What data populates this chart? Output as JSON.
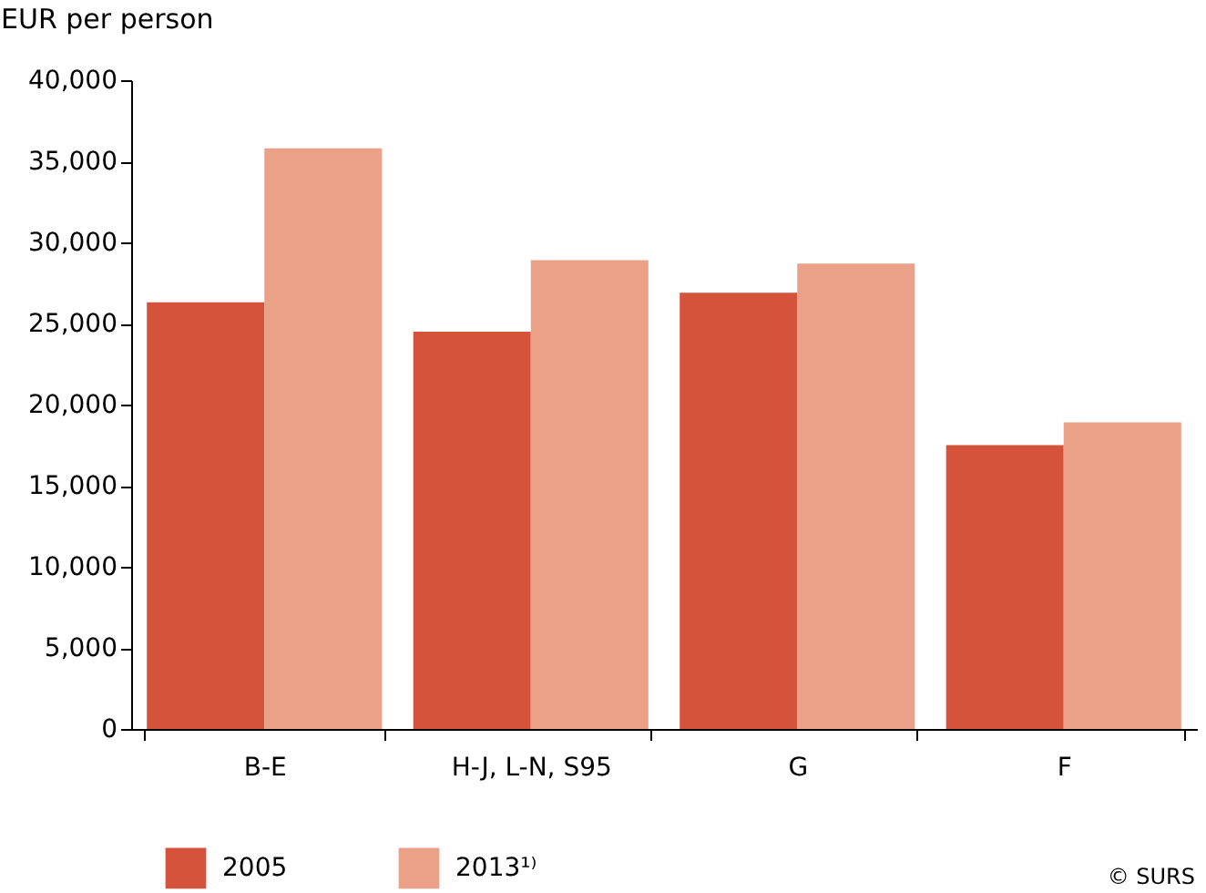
{
  "chart_data": {
    "type": "bar",
    "ylabel": "EUR per person",
    "categories": [
      "B-E",
      "H-J, L-N, S95",
      "G",
      "F"
    ],
    "series": [
      {
        "name": "2005",
        "color": "#d5533b",
        "values": [
          26300,
          24500,
          26900,
          17500
        ]
      },
      {
        "name": "2013¹⁾",
        "color": "#eba188",
        "values": [
          35800,
          28900,
          28700,
          18900
        ]
      }
    ],
    "ylim": [
      0,
      40000
    ],
    "yticks": [
      0,
      {
        "value": 5000,
        "label": "5,000"
      },
      {
        "value": 10000,
        "label": "10,000"
      },
      {
        "value": 15000,
        "label": "15,000"
      },
      {
        "value": 20000,
        "label": "20,000"
      },
      {
        "value": 25000,
        "label": "25,000"
      },
      {
        "value": 30000,
        "label": "30,000"
      },
      {
        "value": 35000,
        "label": "35,000"
      },
      {
        "value": 40000,
        "label": "40,000"
      }
    ],
    "legend": "bottom",
    "annotations": [
      "© SURS"
    ]
  }
}
